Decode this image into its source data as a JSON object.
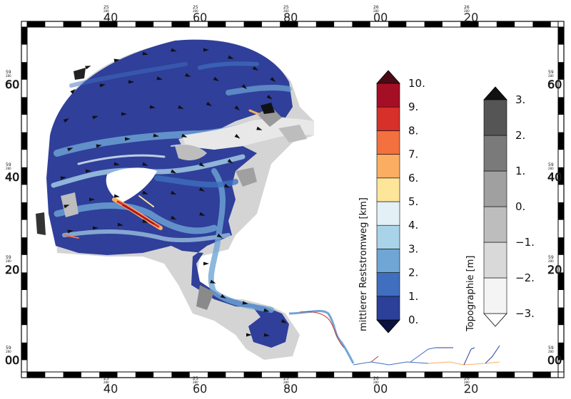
{
  "top_ticks": [
    {
      "small_top": "25",
      "small_bottom": "280",
      "big": "40"
    },
    {
      "small_top": "25",
      "small_bottom": "280",
      "big": "60"
    },
    {
      "small_top": "25",
      "small_bottom": "280",
      "big": "80"
    },
    {
      "small_top": "26",
      "small_bottom": "280",
      "big": "00"
    },
    {
      "small_top": "26",
      "small_bottom": "280",
      "big": "20"
    }
  ],
  "bottom_ticks": [
    {
      "small_top": "25",
      "small_bottom": "280",
      "big": "40"
    },
    {
      "small_top": "25",
      "small_bottom": "280",
      "big": "60"
    },
    {
      "small_top": "25",
      "small_bottom": "280",
      "big": "80"
    },
    {
      "small_top": "26",
      "small_bottom": "280",
      "big": "00"
    },
    {
      "small_top": "26",
      "small_bottom": "280",
      "big": "20"
    }
  ],
  "left_ticks": [
    {
      "small_top": "59",
      "small_bottom": "280",
      "big": "60"
    },
    {
      "small_top": "59",
      "small_bottom": "280",
      "big": "40"
    },
    {
      "small_top": "59",
      "small_bottom": "280",
      "big": "20"
    },
    {
      "small_top": "59",
      "small_bottom": "280",
      "big": "00"
    }
  ],
  "right_ticks": [
    {
      "small_top": "59",
      "small_bottom": "280",
      "big": "60"
    },
    {
      "small_top": "59",
      "small_bottom": "280",
      "big": "40"
    },
    {
      "small_top": "59",
      "small_bottom": "280",
      "big": "20"
    },
    {
      "small_top": "59",
      "small_bottom": "280",
      "big": "00"
    }
  ],
  "current_legend": {
    "title": "mittlerer Reststromweg [km]",
    "labels": [
      "0.",
      "1.",
      "2.",
      "3.",
      "4.",
      "5.",
      "6.",
      "7.",
      "8.",
      "9.",
      "10."
    ],
    "colors": [
      "#2c3f99",
      "#3f6fbe",
      "#6fa6d6",
      "#a9d3e8",
      "#e3f1f6",
      "#fde59a",
      "#fbae62",
      "#f3703f",
      "#d7302a",
      "#a50f26"
    ],
    "under_color": "#0b1240",
    "over_color": "#4d0a14"
  },
  "topo_legend": {
    "title": "Topographie [m]",
    "labels": [
      "-3.",
      "-2.",
      "-1.",
      "0.",
      "1.",
      "2.",
      "3."
    ],
    "colors": [
      "#f4f4f4",
      "#d9d9d9",
      "#bdbdbd",
      "#a0a0a0",
      "#7a7a7a",
      "#555555"
    ],
    "under_color": "#ffffff",
    "over_color": "#111111"
  }
}
